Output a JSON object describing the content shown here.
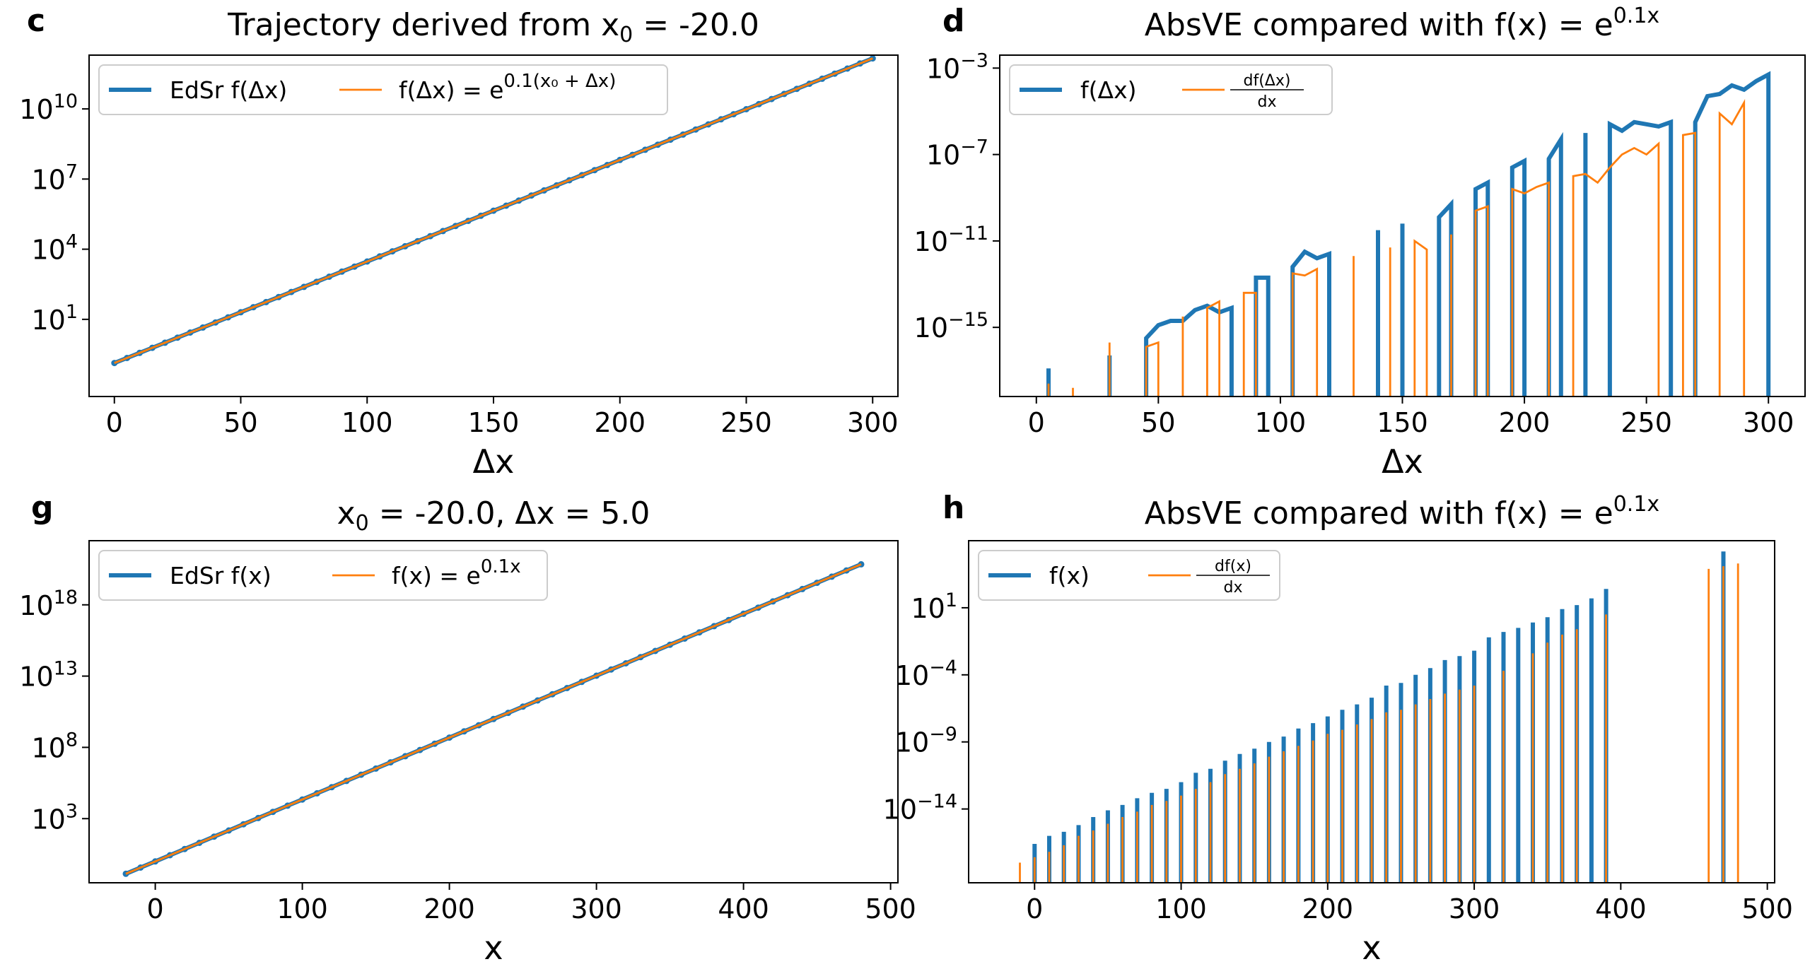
{
  "colors": {
    "blue": "#1f77b4",
    "orange": "#ff7f0e"
  },
  "chart_data": [
    {
      "panel": "c",
      "type": "line",
      "title": {
        "main": "Trajectory derived from x",
        "sub": "0",
        "rest": " = -20.0"
      },
      "xlabel": "Δx",
      "ylabel": "",
      "xlim": [
        -10,
        310
      ],
      "ylim_log10": [
        -2.3,
        12.3
      ],
      "yscale": "log",
      "xticks": [
        0,
        50,
        100,
        150,
        200,
        250,
        300
      ],
      "yticks": [
        {
          "base": "10",
          "exp": "1",
          "value": 1
        },
        {
          "base": "10",
          "exp": "4",
          "value": 4
        },
        {
          "base": "10",
          "exp": "7",
          "value": 7
        },
        {
          "base": "10",
          "exp": "10",
          "value": 10
        }
      ],
      "legend": {
        "position": "upper left",
        "entries": [
          {
            "label": "EdSr f(Δx)",
            "sup": ""
          },
          {
            "label": "f(Δx) = e",
            "sup": "0.1(x₀ + Δx)"
          }
        ]
      },
      "series": [
        {
          "name": "EdSr f(Δx)",
          "style": "thick-blue-dots",
          "formula": "exp(0.1*(-20 + x))",
          "x_range": [
            0,
            300
          ],
          "step": 5
        },
        {
          "name": "f(Δx) = e^{0.1(x₀ + Δx)}",
          "style": "thin-orange",
          "formula": "exp(0.1*(-20 + x))",
          "x_range": [
            0,
            300
          ],
          "step": 5
        }
      ]
    },
    {
      "panel": "d",
      "type": "line",
      "title": {
        "main": "AbsVE compared with f(x) = e",
        "sub": "",
        "rest": "",
        "sup": "0.1x"
      },
      "xlabel": "Δx",
      "ylabel": "",
      "xlim": [
        -15,
        315
      ],
      "ylim_log10": [
        -18.2,
        -2.4
      ],
      "yscale": "log",
      "xticks": [
        0,
        50,
        100,
        150,
        200,
        250,
        300
      ],
      "yticks": [
        {
          "base": "10",
          "exp": "−15",
          "value": -15
        },
        {
          "base": "10",
          "exp": "−11",
          "value": -11
        },
        {
          "base": "10",
          "exp": "−7",
          "value": -7
        },
        {
          "base": "10",
          "exp": "−3",
          "value": -3
        }
      ],
      "legend": {
        "position": "upper left",
        "entries": [
          {
            "label": "f(Δx)",
            "sup": ""
          },
          {
            "label": "df(Δx)/dx",
            "frac_num": "df(Δx)",
            "frac_den": "dx"
          }
        ]
      },
      "series": [
        {
          "name": "f(Δx)",
          "values_log10": [
            [
              5,
              -16.9
            ],
            [
              30,
              -16.3
            ],
            [
              45,
              -15.5
            ],
            [
              50,
              -14.9
            ],
            [
              55,
              -14.7
            ],
            [
              60,
              -14.7
            ],
            [
              65,
              -14.2
            ],
            [
              70,
              -14.0
            ],
            [
              75,
              -14.3
            ],
            [
              80,
              -14.1
            ],
            [
              90,
              -12.7
            ],
            [
              95,
              -12.7
            ],
            [
              105,
              -12.2
            ],
            [
              110,
              -11.5
            ],
            [
              115,
              -11.8
            ],
            [
              120,
              -11.6
            ],
            [
              140,
              -10.5
            ],
            [
              150,
              -10.2
            ],
            [
              165,
              -9.9
            ],
            [
              170,
              -9.3
            ],
            [
              180,
              -8.6
            ],
            [
              185,
              -8.3
            ],
            [
              195,
              -7.6
            ],
            [
              200,
              -7.3
            ],
            [
              210,
              -7.2
            ],
            [
              215,
              -6.3
            ],
            [
              225,
              -6.0
            ],
            [
              235,
              -5.6
            ],
            [
              240,
              -5.9
            ],
            [
              245,
              -5.5
            ],
            [
              250,
              -5.6
            ],
            [
              255,
              -5.7
            ],
            [
              260,
              -5.5
            ],
            [
              270,
              -5.5
            ],
            [
              275,
              -4.3
            ],
            [
              280,
              -4.2
            ],
            [
              285,
              -3.8
            ],
            [
              290,
              -4.0
            ],
            [
              295,
              -3.6
            ],
            [
              300,
              -3.3
            ]
          ]
        },
        {
          "name": "df(Δx)/dx",
          "values_log10": [
            [
              5,
              -17.6
            ],
            [
              15,
              -17.8
            ],
            [
              30,
              -15.7
            ],
            [
              45,
              -15.9
            ],
            [
              50,
              -15.7
            ],
            [
              60,
              -14.5
            ],
            [
              70,
              -14.1
            ],
            [
              75,
              -13.8
            ],
            [
              85,
              -13.4
            ],
            [
              90,
              -13.4
            ],
            [
              105,
              -12.5
            ],
            [
              110,
              -12.6
            ],
            [
              115,
              -12.3
            ],
            [
              130,
              -11.7
            ],
            [
              145,
              -11.3
            ],
            [
              155,
              -11.0
            ],
            [
              160,
              -11.4
            ],
            [
              170,
              -10.7
            ],
            [
              180,
              -9.6
            ],
            [
              185,
              -9.4
            ],
            [
              195,
              -8.6
            ],
            [
              200,
              -8.8
            ],
            [
              205,
              -8.5
            ],
            [
              210,
              -8.3
            ],
            [
              220,
              -8.0
            ],
            [
              225,
              -7.9
            ],
            [
              230,
              -8.3
            ],
            [
              235,
              -7.6
            ],
            [
              240,
              -7.0
            ],
            [
              245,
              -6.7
            ],
            [
              250,
              -7.0
            ],
            [
              255,
              -6.5
            ],
            [
              265,
              -6.1
            ],
            [
              270,
              -6.0
            ],
            [
              280,
              -5.1
            ],
            [
              285,
              -5.6
            ],
            [
              290,
              -4.6
            ]
          ]
        }
      ]
    },
    {
      "panel": "g",
      "type": "line",
      "title": {
        "main": "x",
        "sub": "0",
        "rest": " = -20.0, Δx = 5.0"
      },
      "xlabel": "x",
      "ylabel": "",
      "xlim": [
        -45,
        505
      ],
      "ylim_log10": [
        -1.5,
        22.5
      ],
      "yscale": "log",
      "xticks": [
        0,
        100,
        200,
        300,
        400,
        500
      ],
      "yticks": [
        {
          "base": "10",
          "exp": "3",
          "value": 3
        },
        {
          "base": "10",
          "exp": "8",
          "value": 8
        },
        {
          "base": "10",
          "exp": "13",
          "value": 13
        },
        {
          "base": "10",
          "exp": "18",
          "value": 18
        }
      ],
      "legend": {
        "position": "upper left",
        "entries": [
          {
            "label": "EdSr f(x)",
            "sup": ""
          },
          {
            "label": "f(x) = e",
            "sup": "0.1x"
          }
        ]
      },
      "series": [
        {
          "name": "EdSr f(x)",
          "style": "thick-blue-dots",
          "formula": "exp(0.1*x)",
          "x_range": [
            -20,
            480
          ],
          "step": 10
        },
        {
          "name": "f(x) = e^{0.1x}",
          "style": "thin-orange",
          "formula": "exp(0.1*x)",
          "x_range": [
            -20,
            480
          ],
          "step": 10
        }
      ]
    },
    {
      "panel": "h",
      "type": "line",
      "title": {
        "main": "AbsVE compared with f(x) = e",
        "sub": "",
        "rest": "",
        "sup": "0.1x"
      },
      "xlabel": "x",
      "ylabel": "",
      "xlim": [
        -45,
        505
      ],
      "ylim_log10": [
        -19.5,
        6.0
      ],
      "yscale": "log",
      "xticks": [
        0,
        100,
        200,
        300,
        400,
        500
      ],
      "yticks": [
        {
          "base": "10",
          "exp": "−14",
          "value": -14
        },
        {
          "base": "10",
          "exp": "−9",
          "value": -9
        },
        {
          "base": "10",
          "exp": "−4",
          "value": -4
        },
        {
          "base": "10",
          "exp": "1",
          "value": 1
        }
      ],
      "legend": {
        "position": "upper left",
        "entries": [
          {
            "label": "f(x)",
            "sup": ""
          },
          {
            "label": "df(x)/dx",
            "frac_num": "df(x)",
            "frac_den": "dx"
          }
        ]
      },
      "series": [
        {
          "name": "f(x)",
          "values_log10": [
            [
              0,
              -16.6
            ],
            [
              10,
              -16.0
            ],
            [
              20,
              -15.7
            ],
            [
              30,
              -15.2
            ],
            [
              40,
              -14.6
            ],
            [
              50,
              -14.1
            ],
            [
              60,
              -13.7
            ],
            [
              70,
              -13.2
            ],
            [
              80,
              -12.8
            ],
            [
              90,
              -12.5
            ],
            [
              100,
              -12.0
            ],
            [
              110,
              -11.3
            ],
            [
              120,
              -11.0
            ],
            [
              130,
              -10.4
            ],
            [
              140,
              -9.9
            ],
            [
              150,
              -9.5
            ],
            [
              160,
              -9.0
            ],
            [
              170,
              -8.6
            ],
            [
              180,
              -8.0
            ],
            [
              190,
              -7.6
            ],
            [
              200,
              -7.1
            ],
            [
              210,
              -6.6
            ],
            [
              220,
              -6.2
            ],
            [
              230,
              -5.7
            ],
            [
              240,
              -4.8
            ],
            [
              250,
              -4.6
            ],
            [
              260,
              -4.0
            ],
            [
              270,
              -3.5
            ],
            [
              280,
              -2.9
            ],
            [
              290,
              -2.6
            ],
            [
              300,
              -2.2
            ],
            [
              310,
              -1.2
            ],
            [
              320,
              -0.8
            ],
            [
              330,
              -0.5
            ],
            [
              340,
              -0.1
            ],
            [
              350,
              0.3
            ],
            [
              360,
              0.9
            ],
            [
              370,
              1.2
            ],
            [
              380,
              1.7
            ],
            [
              390,
              2.4
            ],
            [
              470,
              5.2
            ]
          ]
        },
        {
          "name": "df(x)/dx",
          "values_log10": [
            [
              -10,
              -18.0
            ],
            [
              0,
              -17.6
            ],
            [
              10,
              -17.2
            ],
            [
              20,
              -16.7
            ],
            [
              30,
              -16.0
            ],
            [
              40,
              -15.6
            ],
            [
              50,
              -15.1
            ],
            [
              60,
              -14.6
            ],
            [
              70,
              -14.2
            ],
            [
              80,
              -13.7
            ],
            [
              90,
              -13.4
            ],
            [
              100,
              -13.0
            ],
            [
              110,
              -12.5
            ],
            [
              120,
              -12.0
            ],
            [
              130,
              -11.4
            ],
            [
              140,
              -11.0
            ],
            [
              150,
              -10.6
            ],
            [
              160,
              -10.1
            ],
            [
              170,
              -9.7
            ],
            [
              180,
              -9.3
            ],
            [
              190,
              -8.9
            ],
            [
              200,
              -8.4
            ],
            [
              210,
              -8.1
            ],
            [
              220,
              -7.7
            ],
            [
              230,
              -7.3
            ],
            [
              240,
              -6.8
            ],
            [
              250,
              -6.6
            ],
            [
              260,
              -6.2
            ],
            [
              270,
              -5.8
            ],
            [
              280,
              -5.4
            ],
            [
              290,
              -5.1
            ],
            [
              300,
              -4.8
            ],
            [
              320,
              -3.7
            ],
            [
              340,
              -2.4
            ],
            [
              350,
              -1.6
            ],
            [
              360,
              -1.0
            ],
            [
              370,
              -0.6
            ],
            [
              390,
              0.5
            ],
            [
              460,
              3.9
            ],
            [
              470,
              4.1
            ],
            [
              480,
              4.3
            ]
          ]
        }
      ]
    }
  ]
}
